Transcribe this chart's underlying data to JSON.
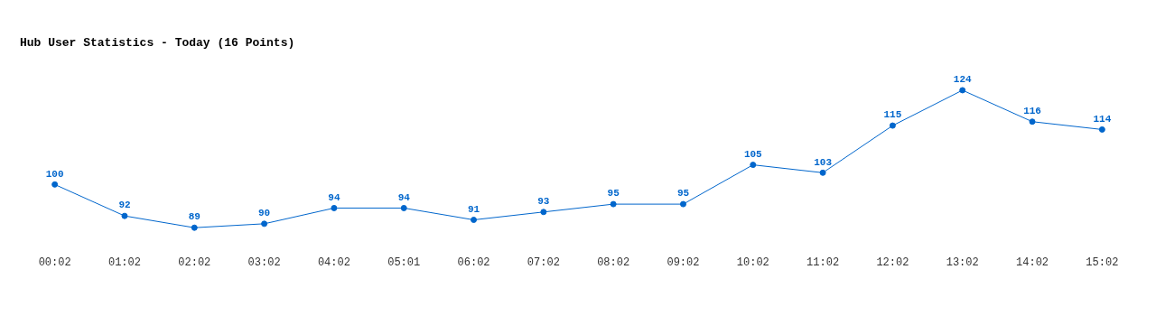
{
  "chart_data": {
    "type": "line",
    "title": "Hub User Statistics - Today (16 Points)",
    "categories": [
      "00:02",
      "01:02",
      "02:02",
      "03:02",
      "04:02",
      "05:01",
      "06:02",
      "07:02",
      "08:02",
      "09:02",
      "10:02",
      "11:02",
      "12:02",
      "13:02",
      "14:02",
      "15:02"
    ],
    "series": [
      {
        "color": "#0066cc",
        "values": [
          100,
          92,
          89,
          90,
          94,
          94,
          91,
          93,
          95,
          95,
          105,
          103,
          115,
          124,
          116,
          114
        ]
      }
    ],
    "data_labels": true,
    "marker": "circle",
    "line_style": "solid",
    "grid": false,
    "legend": false
  }
}
